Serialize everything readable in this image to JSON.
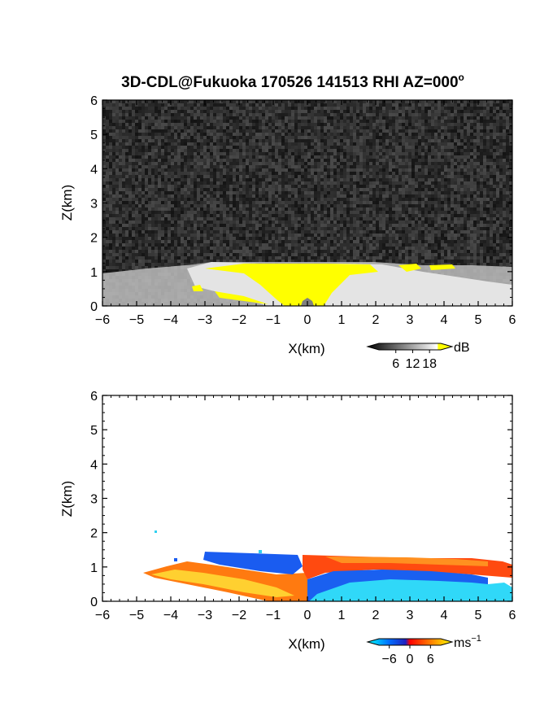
{
  "title": "3D-CDL@Fukuoka 170526 141513 RHI AZ=000",
  "title_suffix": "o",
  "chart_data": [
    {
      "type": "heatmap",
      "name": "intensity-rhi",
      "title": "3D-CDL@Fukuoka 170526 141513 RHI AZ=000o",
      "xlabel": "X(km)",
      "ylabel": "Z(km)",
      "xlim": [
        -6,
        6
      ],
      "ylim": [
        0,
        6
      ],
      "x_ticks": [
        -6,
        -5,
        -4,
        -3,
        -2,
        -1,
        0,
        1,
        2,
        3,
        4,
        5,
        6
      ],
      "y_ticks": [
        0,
        1,
        2,
        3,
        4,
        5,
        6
      ],
      "x_tick_labels": [
        "−6",
        "−5",
        "−4",
        "−3",
        "−2",
        "−1",
        "0",
        "1",
        "2",
        "3",
        "4",
        "5",
        "6"
      ],
      "y_tick_labels": [
        "0",
        "1",
        "2",
        "3",
        "4",
        "5",
        "6"
      ],
      "grid": false,
      "background": "noise",
      "colorbar": {
        "unit": "dB",
        "ticks": [
          6,
          12,
          18
        ],
        "tick_labels": [
          "6",
          "12",
          "18"
        ],
        "colors": [
          "#000000",
          "#ffffff",
          "#ffff00"
        ],
        "range": [
          0,
          22
        ]
      },
      "regions": [
        {
          "label": "strong echo (>18 dB)",
          "x_range": [
            -3.3,
            3.8
          ],
          "z_range": [
            0,
            1.3
          ],
          "color": "#ffff00"
        },
        {
          "label": "boundary layer echo",
          "x_range": [
            -6,
            6
          ],
          "z_range": [
            0,
            1.3
          ],
          "color": "#d8d8d8"
        }
      ]
    },
    {
      "type": "heatmap",
      "name": "doppler-velocity-rhi",
      "xlabel": "X(km)",
      "ylabel": "Z(km)",
      "xlim": [
        -6,
        6
      ],
      "ylim": [
        0,
        6
      ],
      "x_ticks": [
        -6,
        -5,
        -4,
        -3,
        -2,
        -1,
        0,
        1,
        2,
        3,
        4,
        5,
        6
      ],
      "y_ticks": [
        0,
        1,
        2,
        3,
        4,
        5,
        6
      ],
      "x_tick_labels": [
        "−6",
        "−5",
        "−4",
        "−3",
        "−2",
        "−1",
        "0",
        "1",
        "2",
        "3",
        "4",
        "5",
        "6"
      ],
      "y_tick_labels": [
        "0",
        "1",
        "2",
        "3",
        "4",
        "5",
        "6"
      ],
      "grid": false,
      "colorbar": {
        "unit": "ms",
        "unit_exp": "−1",
        "ticks": [
          -6,
          0,
          6
        ],
        "tick_labels": [
          "−6",
          "0",
          "6"
        ],
        "colors": [
          "#00ffff",
          "#0060ff",
          "#2020c0",
          "#ff0000",
          "#ff8000",
          "#ffff00"
        ],
        "range": [
          -9,
          9
        ]
      },
      "regions": [
        {
          "label": "receding (positive)",
          "x_range": [
            -4.8,
            0
          ],
          "z_range": [
            0,
            1.0
          ],
          "value": 5
        },
        {
          "label": "approaching (negative) upper left",
          "x_range": [
            -3,
            -0.3
          ],
          "z_range": [
            0.9,
            1.4
          ],
          "value": -7
        },
        {
          "label": "positive upper right",
          "x_range": [
            0,
            6
          ],
          "z_range": [
            0.9,
            1.3
          ],
          "value": 3
        },
        {
          "label": "negative lower right",
          "x_range": [
            0,
            6
          ],
          "z_range": [
            0,
            0.9
          ],
          "value": -6
        }
      ]
    }
  ]
}
